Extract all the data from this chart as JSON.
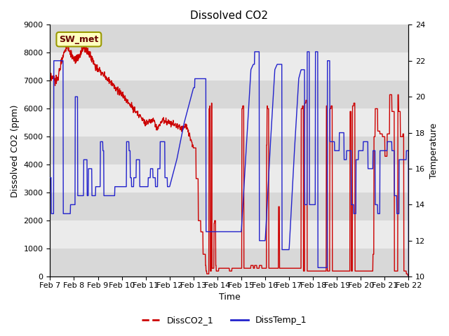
{
  "title": "Dissolved CO2",
  "xlabel": "Time",
  "ylabel_left": "Dissolved CO2 (ppm)",
  "ylabel_right": "Temperature",
  "annotation": "SW_met",
  "ylim_left": [
    0,
    9000
  ],
  "ylim_right": [
    10,
    24
  ],
  "yticks_left": [
    0,
    1000,
    2000,
    3000,
    4000,
    5000,
    6000,
    7000,
    8000,
    9000
  ],
  "yticks_right": [
    10,
    12,
    14,
    16,
    18,
    20,
    22,
    24
  ],
  "xtick_labels": [
    "Feb 7",
    "Feb 8",
    "Feb 9",
    "Feb 10",
    "Feb 11",
    "Feb 12",
    "Feb 13",
    "Feb 14",
    "Feb 15",
    "Feb 16",
    "Feb 17",
    "Feb 18",
    "Feb 19",
    "Feb 20",
    "Feb 21",
    "Feb 22"
  ],
  "color_co2": "#cc0000",
  "color_temp": "#2222cc",
  "legend_entries": [
    "DissCO2_1",
    "DissTemp_1"
  ],
  "background_color": "#e8e8e8",
  "band_colors": [
    "#d8d8d8",
    "#ebebeb"
  ],
  "title_fontsize": 11,
  "axis_fontsize": 9,
  "tick_fontsize": 8,
  "annotation_fontsize": 9,
  "linewidth_co2": 1.0,
  "linewidth_temp": 1.0
}
